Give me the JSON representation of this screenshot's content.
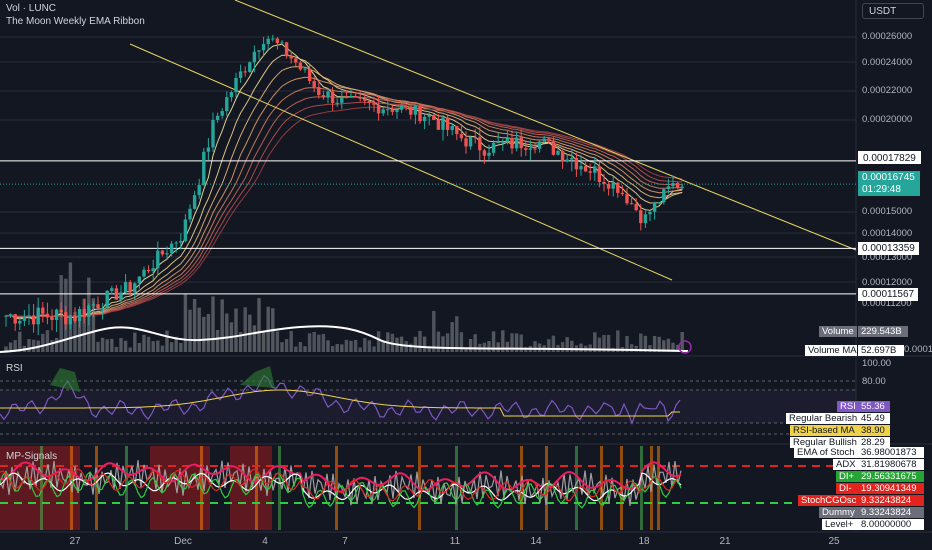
{
  "legend": {
    "line1": "Vol · LUNC",
    "line2": "The Moon Weekly EMA Ribbon"
  },
  "currency": "USDT",
  "colors": {
    "bg": "#131722",
    "up": "#26a69a",
    "down": "#ef5350",
    "yellow": "#e6d562",
    "grid": "#2a2e39",
    "rsi": "#7e57c2"
  },
  "axis": {
    "price_ticks": [
      "0.00026000",
      "0.00024000",
      "0.00022000",
      "0.00020000",
      "0.00015000",
      "0.00014000",
      "0.00013000",
      "0.00012000",
      "0.00011200",
      "0.00010"
    ],
    "rsi_ticks": [
      "100.00",
      "80.00"
    ],
    "x_ticks": [
      "27",
      "Dec",
      "4",
      "7",
      "11",
      "14",
      "18",
      "21",
      "25"
    ]
  },
  "tags": {
    "level_1": "0.00017829",
    "current_price": "0.00016745",
    "countdown": "01:29:48",
    "level_2": "0.00013359",
    "level_3": "0.00011567",
    "volume_label": "Volume",
    "volume_value": "229.543B",
    "volume_ma_label": "Volume MA",
    "volume_ma_value": "52.697B"
  },
  "rsi_panel": {
    "title": "RSI",
    "labels": [
      {
        "name": "RSI",
        "value": "55.36"
      },
      {
        "name": "Regular Bearish",
        "value": "45.49"
      },
      {
        "name": "RSI-based MA",
        "value": "38.90"
      },
      {
        "name": "Regular Bullish",
        "value": "28.29"
      }
    ]
  },
  "mp_panel": {
    "title": "MP-Signals",
    "labels": [
      {
        "name": "EMA of Stoch",
        "value": "36.98001873"
      },
      {
        "name": "ADX",
        "value": "31.81980678"
      },
      {
        "name": "DI+",
        "value": "29.56331675"
      },
      {
        "name": "DI-",
        "value": "19.30941349"
      },
      {
        "name": "StochCGOsc",
        "value": "9.33243824"
      },
      {
        "name": "Dummy",
        "value": "9.33243824"
      },
      {
        "name": "Level+",
        "value": "8.00000000"
      }
    ]
  },
  "chart_data": {
    "type": "candlestick",
    "symbol": "LUNC / USDT",
    "x_labels": [
      "27",
      "Dec",
      "4",
      "7",
      "11",
      "14",
      "18",
      "21",
      "25"
    ],
    "price_levels": [
      0.00017829,
      0.00013359,
      0.00011567
    ],
    "last_price": 0.00016745,
    "approx_close_path": [
      {
        "date": "Nov 27",
        "close": 0.000109
      },
      {
        "date": "Nov 30",
        "close": 0.000118
      },
      {
        "date": "Dec 2",
        "close": 0.00014
      },
      {
        "date": "Dec 3",
        "close": 0.0002
      },
      {
        "date": "Dec 4",
        "close": 0.000262
      },
      {
        "date": "Dec 5",
        "close": 0.000243
      },
      {
        "date": "Dec 6",
        "close": 0.00022
      },
      {
        "date": "Dec 7",
        "close": 0.000212
      },
      {
        "date": "Dec 9",
        "close": 0.000208
      },
      {
        "date": "Dec 10",
        "close": 0.000203
      },
      {
        "date": "Dec 11",
        "close": 0.000192
      },
      {
        "date": "Dec 12",
        "close": 0.000185
      },
      {
        "date": "Dec 14",
        "close": 0.000189
      },
      {
        "date": "Dec 16",
        "close": 0.000175
      },
      {
        "date": "Dec 17",
        "close": 0.000166
      },
      {
        "date": "Dec 18",
        "close": 0.000146
      },
      {
        "date": "Dec 19",
        "close": 0.000167
      }
    ],
    "rsi_last": 55.36,
    "rsi_ma_last": 38.9,
    "volume_last": "229.543B",
    "volume_ma_last": "52.697B"
  }
}
